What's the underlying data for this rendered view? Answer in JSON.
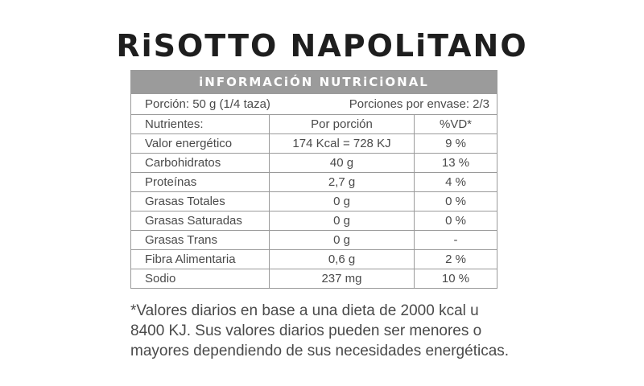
{
  "title": "RiSOTTO NAPOLiTANO",
  "table": {
    "header": "iNFORMACiÓN NUTRiCiONAL",
    "serving_size": "Porción: 50 g (1/4 taza)",
    "servings_per_container": "Porciones por envase:  2/3",
    "columns": [
      "Nutrientes:",
      "Por porción",
      "%VD*"
    ],
    "rows": [
      {
        "name": "Valor energético",
        "value": "174 Kcal = 728 KJ",
        "dv": "9 %"
      },
      {
        "name": "Carbohidratos",
        "value": "40 g",
        "dv": "13 %"
      },
      {
        "name": "Proteínas",
        "value": "2,7 g",
        "dv": "4 %"
      },
      {
        "name": "Grasas Totales",
        "value": "0 g",
        "dv": "0 %"
      },
      {
        "name": "Grasas Saturadas",
        "value": "0 g",
        "dv": "0 %"
      },
      {
        "name": "Grasas Trans",
        "value": "0 g",
        "dv": "-"
      },
      {
        "name": "Fibra Alimentaria",
        "value": "0,6 g",
        "dv": "2 %"
      },
      {
        "name": "Sodio",
        "value": "237 mg",
        "dv": "10 %"
      }
    ]
  },
  "footnote": "*Valores diarios en base a una dieta de 2000 kcal u 8400 KJ. Sus valores diarios pueden ser menores o mayores dependiendo de sus necesidades energéticas.",
  "colors": {
    "header_background": "#9b9b9b",
    "border": "#9a9a9a",
    "text": "#4a4a4a",
    "title": "#1e1e1e"
  }
}
